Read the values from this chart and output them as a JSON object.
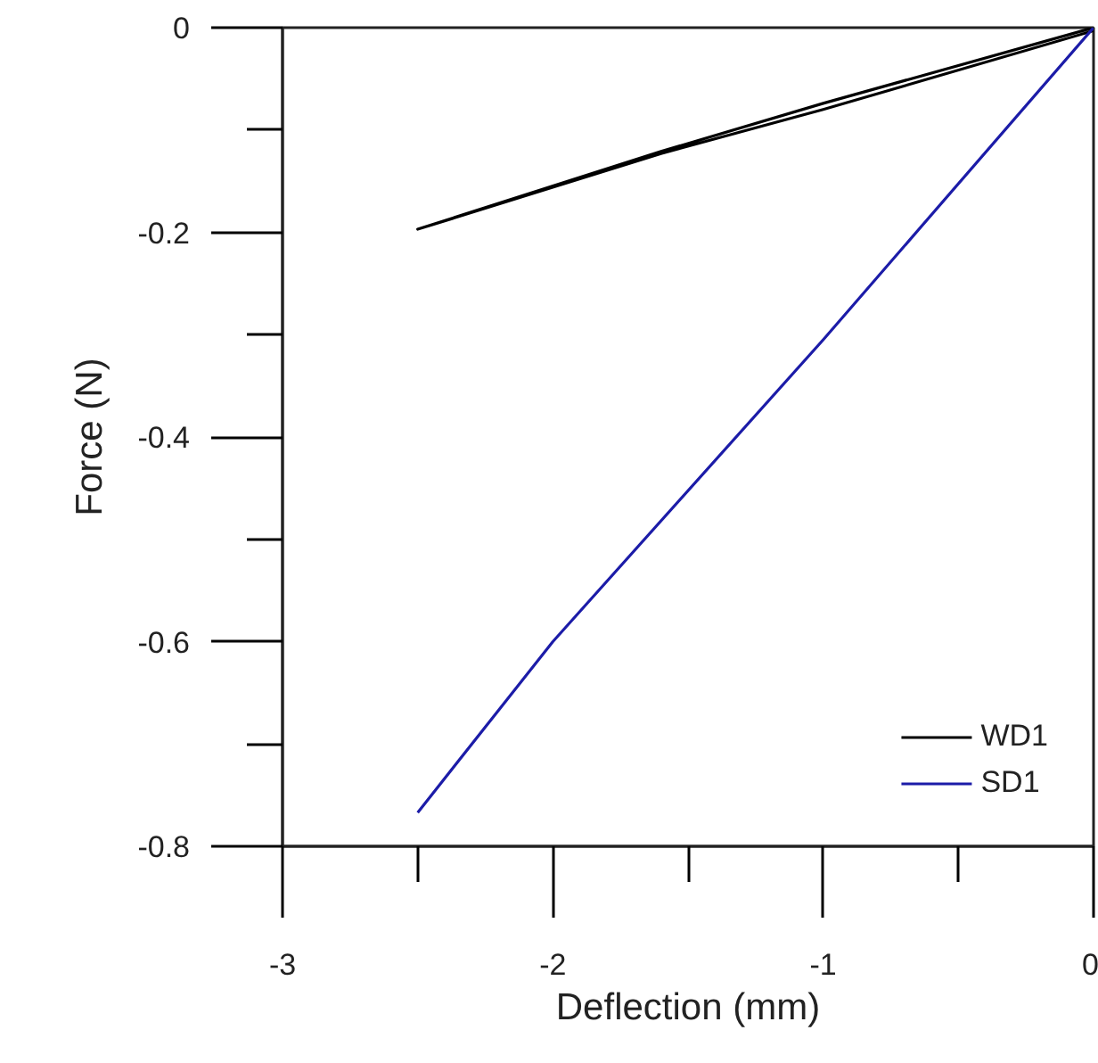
{
  "chart_data": {
    "type": "line",
    "xlabel": "Deflection (mm)",
    "ylabel": "Force (N)",
    "xlim": [
      -3,
      0
    ],
    "ylim": [
      -0.8,
      0
    ],
    "xticks": [
      -3,
      -2,
      -1,
      0
    ],
    "yticks": [
      -0.8,
      -0.6,
      -0.4,
      -0.2,
      0
    ],
    "grid": false,
    "legend": "bottom right",
    "marker": "none",
    "line_style": "solid",
    "series": [
      {
        "name": "WD1",
        "color": "#000000",
        "x": [
          0,
          -1.0,
          -1.6,
          -2.5,
          -1.6,
          -1.0,
          0
        ],
        "values": [
          0,
          -0.074,
          -0.121,
          -0.197,
          -0.123,
          -0.08,
          -0.003
        ]
      },
      {
        "name": "SD1",
        "color": "#1c1ca8",
        "x": [
          0,
          -1.0,
          -2.0,
          -2.5
        ],
        "values": [
          0,
          -0.305,
          -0.6,
          -0.767
        ]
      }
    ]
  }
}
